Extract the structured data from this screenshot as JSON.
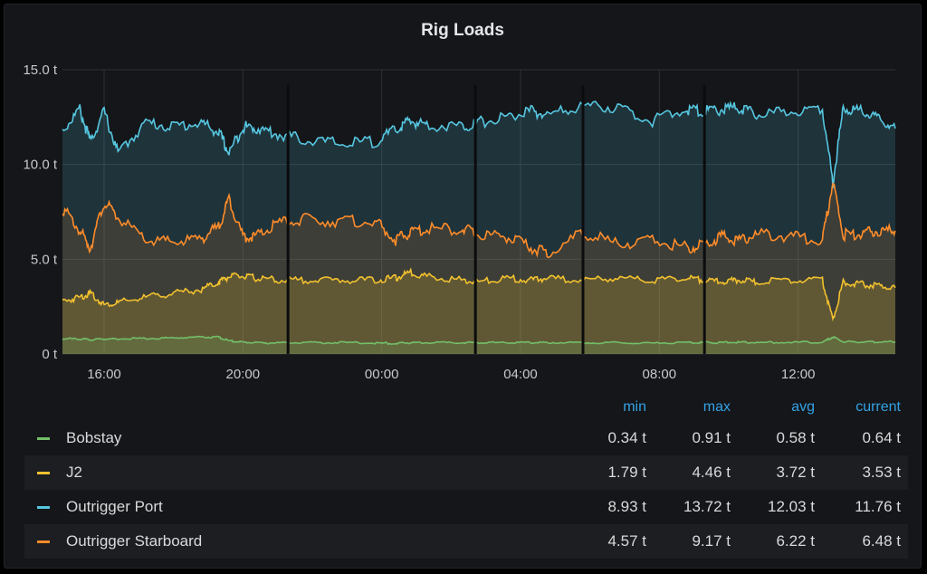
{
  "panel": {
    "title": "Rig Loads"
  },
  "chart_data": {
    "type": "area",
    "title": "Rig Loads",
    "ylim": [
      0,
      15
    ],
    "y_ticks": [
      0,
      5,
      10,
      15
    ],
    "y_tick_labels": [
      "0 t",
      "5.0 t",
      "10.0 t",
      "15.0 t"
    ],
    "x_start": "14:48",
    "x_end": "14:48",
    "x_tick_labels": [
      "16:00",
      "20:00",
      "00:00",
      "04:00",
      "08:00",
      "12:00"
    ],
    "grid": true,
    "x_hours": [
      0,
      0.5,
      0.8,
      1.2,
      1.6,
      2.4,
      3.2,
      4.0,
      4.5,
      4.8,
      5.2,
      5.6,
      6.2,
      7.0,
      8.0,
      9.0,
      9.6,
      10.0,
      10.5,
      11.5,
      12.0,
      12.8,
      13.5,
      14.0,
      15.0,
      16.0,
      17.0,
      18.0,
      18.5,
      19.0,
      19.5,
      20.0,
      21.0,
      21.9,
      22.2,
      22.5,
      23.0,
      23.5,
      24.0
    ],
    "series": [
      {
        "name": "Outrigger Port",
        "color": "#56c6e0",
        "values": [
          11.8,
          12.9,
          11.2,
          12.8,
          10.6,
          12.2,
          12.0,
          12.2,
          11.7,
          10.6,
          12.0,
          11.9,
          11.6,
          11.3,
          11.1,
          11.2,
          11.8,
          12.3,
          12.1,
          12.0,
          12.2,
          12.5,
          12.8,
          12.6,
          13.1,
          13.0,
          12.3,
          12.9,
          12.8,
          12.9,
          13.0,
          12.6,
          12.8,
          13.0,
          9.0,
          13.0,
          12.8,
          12.4,
          11.9
        ]
      },
      {
        "name": "Outrigger Starboard",
        "color": "#ff8c2a",
        "values": [
          7.7,
          6.5,
          5.6,
          8.0,
          7.2,
          6.0,
          5.9,
          6.1,
          6.7,
          8.2,
          6.2,
          6.2,
          6.9,
          7.1,
          7.0,
          7.0,
          6.0,
          6.4,
          6.6,
          6.6,
          6.3,
          6.2,
          5.6,
          5.3,
          6.4,
          5.8,
          6.0,
          5.6,
          5.8,
          6.2,
          6.0,
          6.3,
          6.2,
          6.0,
          9.1,
          6.3,
          6.3,
          6.5,
          6.5
        ]
      },
      {
        "name": "J2",
        "color": "#f2c12e",
        "values": [
          2.8,
          3.0,
          3.2,
          2.6,
          2.7,
          3.0,
          3.2,
          3.4,
          3.8,
          4.1,
          4.1,
          4.0,
          3.9,
          3.9,
          3.9,
          3.9,
          4.0,
          4.3,
          4.1,
          3.9,
          3.8,
          4.0,
          3.9,
          4.0,
          3.9,
          4.0,
          3.9,
          4.0,
          3.9,
          3.8,
          3.9,
          3.8,
          3.9,
          3.9,
          1.8,
          3.8,
          3.7,
          3.6,
          3.5
        ]
      },
      {
        "name": "Bobstay",
        "color": "#73bf69",
        "values": [
          0.8,
          0.8,
          0.75,
          0.8,
          0.8,
          0.82,
          0.85,
          0.9,
          0.88,
          0.7,
          0.62,
          0.6,
          0.58,
          0.6,
          0.6,
          0.58,
          0.55,
          0.6,
          0.6,
          0.6,
          0.6,
          0.6,
          0.6,
          0.6,
          0.6,
          0.6,
          0.58,
          0.6,
          0.6,
          0.6,
          0.62,
          0.6,
          0.62,
          0.62,
          0.9,
          0.65,
          0.64,
          0.64,
          0.64
        ]
      }
    ],
    "gaps_hours": [
      6.5,
      11.9,
      15.0,
      18.5
    ]
  },
  "legend": {
    "headers": {
      "min": "min",
      "max": "max",
      "avg": "avg",
      "current": "current"
    },
    "rows": [
      {
        "name": "Bobstay",
        "color": "#73bf69",
        "min": "0.34 t",
        "max": "0.91 t",
        "avg": "0.58 t",
        "current": "0.64 t"
      },
      {
        "name": "J2",
        "color": "#f2c12e",
        "min": "1.79 t",
        "max": "4.46 t",
        "avg": "3.72 t",
        "current": "3.53 t"
      },
      {
        "name": "Outrigger Port",
        "color": "#56c6e0",
        "min": "8.93 t",
        "max": "13.72 t",
        "avg": "12.03 t",
        "current": "11.76 t"
      },
      {
        "name": "Outrigger Starboard",
        "color": "#ff8c2a",
        "min": "4.57 t",
        "max": "9.17 t",
        "avg": "6.22 t",
        "current": "6.48 t"
      }
    ]
  }
}
